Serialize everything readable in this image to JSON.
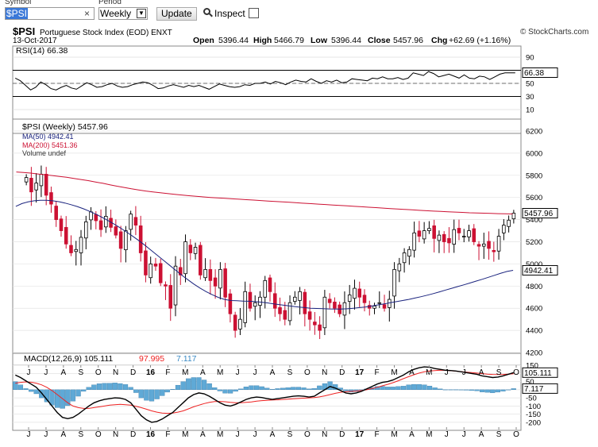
{
  "toolbar": {
    "symbol_label": "Symbol",
    "symbol_value": "$PSI",
    "clear_glyph": "×",
    "period_label": "Period",
    "period_value": "Weekly",
    "update_label": "Update",
    "inspect_label": "Inspect"
  },
  "header": {
    "ticker": "$PSI",
    "name": "Portuguese Stock Index (EOD) ENXT",
    "date": "13-Oct-2017",
    "brand": "© StockCharts.com",
    "open_label": "Open",
    "open": "5396.44",
    "high_label": "High",
    "high": "5466.79",
    "low_label": "Low",
    "low": "5396.44",
    "close_label": "Close",
    "close": "5457.96",
    "chg_label": "Chg",
    "chg": "+62.69 (+1.16%)"
  },
  "colors": {
    "up": "#000000",
    "down": "#cc1133",
    "ma50": "#1a237e",
    "ma200": "#cc1133",
    "macd_hist": "#5fa9d6",
    "macd_signal": "#ee2222"
  },
  "chart_data": [
    {
      "type": "line",
      "title": "RSI(14) 66.38",
      "legend": "RSI(14) 66.38",
      "ylim": [
        0,
        100
      ],
      "ticks": [
        90,
        70,
        50,
        30,
        10
      ],
      "reference_lines": [
        70,
        30
      ],
      "last_value_label": "66.38",
      "series": [
        {
          "name": "RSI(14)",
          "values": [
            58,
            54,
            47,
            40,
            44,
            52,
            48,
            42,
            40,
            44,
            47,
            43,
            41,
            46,
            51,
            48,
            44,
            45,
            48,
            50,
            46,
            44,
            45,
            48,
            50,
            52,
            51,
            47,
            42,
            43,
            46,
            48,
            46,
            44,
            47,
            45,
            47,
            44,
            41,
            45,
            49,
            47,
            45,
            44,
            45,
            48,
            47,
            50,
            50,
            52,
            49,
            53,
            51,
            48,
            52,
            55,
            53,
            52,
            57,
            53,
            50,
            54,
            52,
            55,
            51,
            52,
            57,
            56,
            55,
            54,
            58,
            57,
            60,
            57,
            57,
            59,
            56,
            58,
            66,
            64,
            62,
            68,
            65,
            60,
            62,
            64,
            61,
            58,
            63,
            58,
            57,
            61,
            60,
            56,
            60,
            64,
            66,
            66,
            66
          ]
        }
      ]
    },
    {
      "type": "candlestick",
      "title": "$PSI (Weekly) 5457.96",
      "ylim": [
        4100,
        6250
      ],
      "yticks": [
        6200,
        6000,
        5800,
        5600,
        5400,
        5200,
        5000,
        4800,
        4600,
        4400,
        4200
      ],
      "xticks": [
        "J",
        "J",
        "A",
        "S",
        "O",
        "N",
        "D",
        "16",
        "F",
        "M",
        "A",
        "M",
        "J",
        "J",
        "A",
        "S",
        "O",
        "N",
        "D",
        "17",
        "F",
        "M",
        "A",
        "M",
        "J",
        "J",
        "A",
        "S",
        "O"
      ],
      "legend": [
        "$PSI (Weekly) 5457.96",
        "MA(50) 4942.41",
        "MA(200) 5451.36",
        "Volume undef"
      ],
      "price_labels": [
        "5457.96",
        "4942.41"
      ],
      "close": [
        5780,
        5650,
        5730,
        5810,
        5620,
        5540,
        5400,
        5300,
        5180,
        5100,
        5130,
        5240,
        5380,
        5470,
        5390,
        5310,
        5430,
        5330,
        5260,
        5140,
        5300,
        5450,
        5350,
        5100,
        4900,
        5000,
        4980,
        4830,
        4800,
        4600,
        4980,
        4900,
        5200,
        5100,
        5150,
        4900,
        4950,
        4850,
        4800,
        4950,
        4700,
        4550,
        4400,
        4500,
        4750,
        4600,
        4650,
        4700,
        4850,
        4750,
        4600,
        4550,
        4500,
        4650,
        4700,
        4750,
        4550,
        4500,
        4450,
        4400,
        4700,
        4650,
        4600,
        4550,
        4650,
        4720,
        4780,
        4700,
        4650,
        4600,
        4620,
        4650,
        4600,
        4680,
        4950,
        5000,
        5100,
        5130,
        5280,
        5250,
        5300,
        5320,
        5230,
        5260,
        5200,
        5190,
        5310,
        5280,
        5250,
        5300,
        5200,
        5160,
        5180,
        5140,
        5110,
        5250,
        5350,
        5395,
        5458
      ],
      "series": [
        {
          "name": "MA(50)",
          "values": [
            5520,
            5545,
            5560,
            5570,
            5575,
            5575,
            5570,
            5562,
            5550,
            5535,
            5518,
            5498,
            5475,
            5450,
            5422,
            5392,
            5360,
            5326,
            5290,
            5252,
            5212,
            5170,
            5125,
            5080,
            5035,
            4990,
            4945,
            4900,
            4858,
            4818,
            4782,
            4750,
            4722,
            4698,
            4680,
            4670,
            4668,
            4665,
            4663,
            4660,
            4655,
            4648,
            4640,
            4632,
            4625,
            4618,
            4612,
            4606,
            4600,
            4598,
            4596,
            4594,
            4593,
            4593,
            4595,
            4600,
            4606,
            4612,
            4620,
            4630,
            4640,
            4650,
            4660,
            4670,
            4680,
            4692,
            4704,
            4718,
            4732,
            4748,
            4764,
            4780,
            4796,
            4812,
            4828,
            4845,
            4862,
            4880,
            4898,
            4916,
            4932,
            4942
          ]
        },
        {
          "name": "MA(200)",
          "values": [
            5830,
            5825,
            5820,
            5812,
            5805,
            5798,
            5790,
            5782,
            5772,
            5762,
            5752,
            5740,
            5728,
            5715,
            5702,
            5690,
            5678,
            5668,
            5658,
            5650,
            5642,
            5635,
            5628,
            5622,
            5616,
            5610,
            5605,
            5600,
            5596,
            5592,
            5588,
            5584,
            5580,
            5576,
            5572,
            5568,
            5564,
            5560,
            5556,
            5552,
            5548,
            5544,
            5540,
            5536,
            5532,
            5528,
            5524,
            5520,
            5516,
            5512,
            5508,
            5504,
            5500,
            5496,
            5492,
            5488,
            5484,
            5480,
            5477,
            5474,
            5471,
            5468,
            5465,
            5462,
            5460,
            5458,
            5456,
            5454,
            5452,
            5451
          ]
        }
      ]
    },
    {
      "type": "line",
      "title": "MACD(12,26,9) 105.111, 97.995, 7.117",
      "legend": [
        "MACD(12,26,9) 105.111",
        "97.995",
        "7.117"
      ],
      "ylim": [
        -230,
        170
      ],
      "yticks": [
        150,
        100,
        50,
        0,
        -50,
        -100,
        -150,
        -200
      ],
      "value_labels": [
        "105.111",
        "7.117"
      ],
      "xticks": [
        "J",
        "J",
        "A",
        "S",
        "O",
        "N",
        "D",
        "16",
        "F",
        "M",
        "A",
        "M",
        "J",
        "J",
        "A",
        "S",
        "O",
        "N",
        "D",
        "17",
        "F",
        "M",
        "A",
        "M",
        "J",
        "J",
        "A",
        "S",
        "O"
      ],
      "series": [
        {
          "name": "MACD",
          "values": [
            90,
            75,
            55,
            35,
            15,
            -20,
            -60,
            -100,
            -140,
            -170,
            -178,
            -170,
            -150,
            -125,
            -100,
            -80,
            -68,
            -60,
            -55,
            -50,
            -52,
            -60,
            -80,
            -120,
            -160,
            -185,
            -200,
            -195,
            -180,
            -160,
            -140,
            -110,
            -80,
            -50,
            -30,
            -20,
            -25,
            -40,
            -60,
            -80,
            -95,
            -100,
            -90,
            -75,
            -60,
            -50,
            -45,
            -48,
            -55,
            -60,
            -55,
            -50,
            -45,
            -40,
            -38,
            -40,
            -45,
            -40,
            -20,
            0,
            20,
            10,
            -5,
            -20,
            -25,
            -20,
            -10,
            5,
            20,
            35,
            45,
            50,
            60,
            75,
            90,
            110,
            125,
            135,
            140,
            138,
            130,
            125,
            120,
            118,
            115,
            110,
            105,
            100,
            95,
            85,
            80,
            75,
            78,
            85,
            95,
            105
          ]
        },
        {
          "name": "Signal",
          "values": [
            40,
            45,
            48,
            46,
            40,
            30,
            15,
            -5,
            -30,
            -55,
            -80,
            -100,
            -110,
            -115,
            -115,
            -110,
            -105,
            -100,
            -95,
            -92,
            -90,
            -92,
            -95,
            -102,
            -110,
            -120,
            -130,
            -138,
            -143,
            -145,
            -143,
            -138,
            -130,
            -118,
            -105,
            -95,
            -85,
            -78,
            -73,
            -72,
            -74,
            -78,
            -80,
            -80,
            -78,
            -75,
            -70,
            -67,
            -65,
            -63,
            -62,
            -60,
            -58,
            -56,
            -54,
            -52,
            -50,
            -48,
            -44,
            -38,
            -30,
            -22,
            -16,
            -12,
            -10,
            -8,
            -5,
            0,
            7,
            15,
            24,
            33,
            43,
            55,
            68,
            80,
            92,
            102,
            110,
            115,
            118,
            120,
            119,
            117,
            114,
            111,
            108,
            105,
            102,
            99,
            96,
            94,
            93,
            94,
            96,
            98
          ]
        },
        {
          "name": "Histogram",
          "values": [
            50,
            30,
            7,
            -11,
            -25,
            -50,
            -75,
            -95,
            -110,
            -115,
            -98,
            -70,
            -40,
            -10,
            15,
            30,
            37,
            40,
            40,
            42,
            38,
            32,
            15,
            -18,
            -50,
            -65,
            -70,
            -57,
            -37,
            -15,
            3,
            28,
            50,
            68,
            75,
            75,
            60,
            38,
            13,
            -8,
            -21,
            -22,
            -10,
            5,
            18,
            25,
            25,
            19,
            10,
            3,
            7,
            10,
            13,
            16,
            16,
            12,
            5,
            8,
            24,
            38,
            50,
            32,
            11,
            -8,
            -15,
            -12,
            -5,
            5,
            13,
            20,
            21,
            17,
            17,
            20,
            22,
            30,
            33,
            33,
            30,
            23,
            12,
            5,
            1,
            1,
            1,
            -1,
            -3,
            -5,
            -7,
            -14,
            -16,
            -19,
            -15,
            -9,
            -1,
            7
          ]
        }
      ]
    }
  ]
}
